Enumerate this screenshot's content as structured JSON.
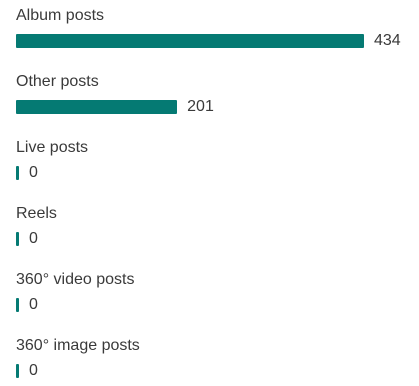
{
  "chart_data": {
    "type": "bar",
    "orientation": "horizontal",
    "categories": [
      "Album posts",
      "Other posts",
      "Live posts",
      "Reels",
      "360° video posts",
      "360° image posts"
    ],
    "values": [
      434,
      201,
      0,
      0,
      0,
      0
    ],
    "xlim": [
      0,
      434
    ],
    "color": "#057a73",
    "grid": false
  }
}
